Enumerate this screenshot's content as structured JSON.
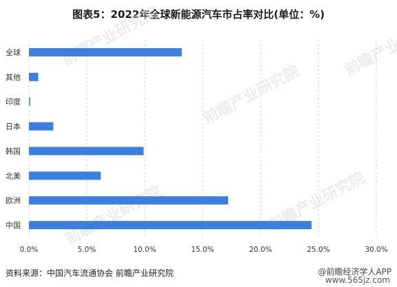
{
  "title": "图表5：2022年全球新能源汽车市占率对比(单位：%)",
  "source": "资料来源：中国汽车流通协会 前瞻产业研究院",
  "footer_brand": "@前瞻经济学人APP",
  "footer_site": "www.565jz.com",
  "watermark": "前瞻产业研究院",
  "colors": {
    "bar": "#3d7fe0",
    "grid": "#d4d4d4"
  },
  "chart_data": {
    "type": "bar",
    "orientation": "horizontal",
    "categories": [
      "全球",
      "其他",
      "印度",
      "日本",
      "韩国",
      "北美",
      "欧洲",
      "中国"
    ],
    "values": [
      13.2,
      0.8,
      0.1,
      2.1,
      9.9,
      6.2,
      17.2,
      24.4
    ],
    "xlim": [
      0,
      30
    ],
    "x_ticks": [
      "0.0%",
      "5.0%",
      "10.0%",
      "15.0%",
      "20.0%",
      "25.0%",
      "30.0%"
    ],
    "grid": "vertical dashed"
  }
}
